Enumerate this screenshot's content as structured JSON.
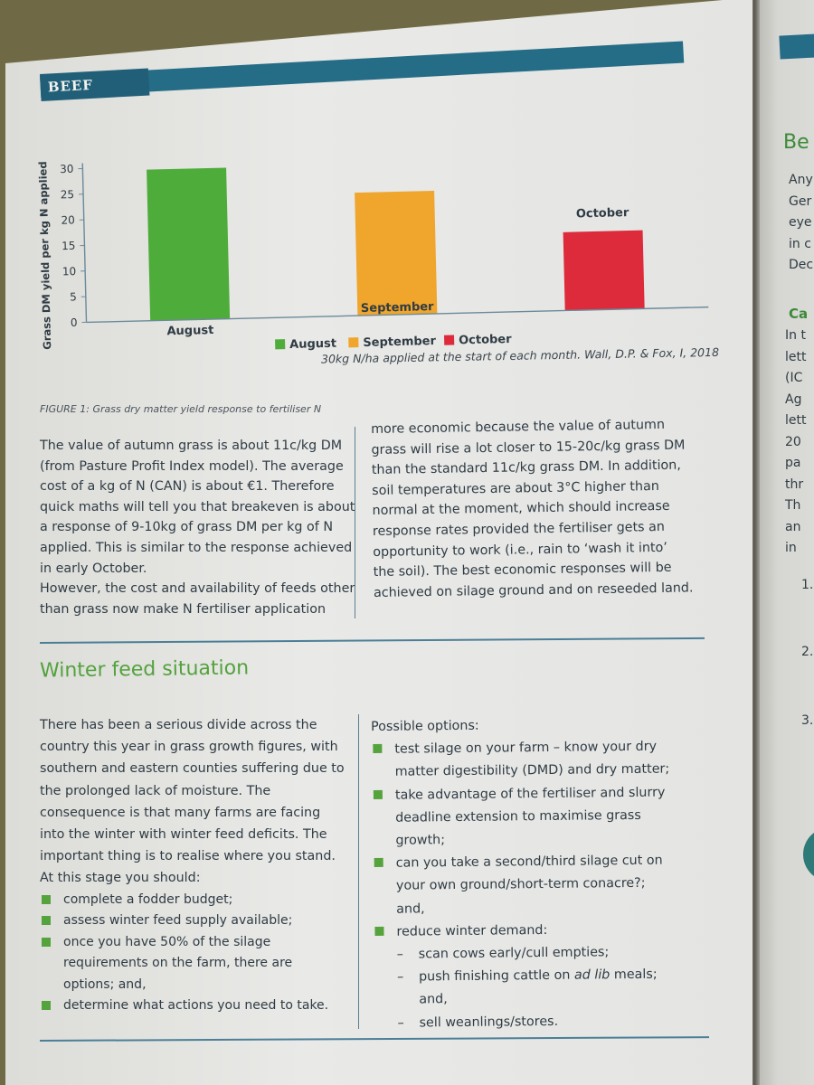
{
  "header": {
    "section_label": "BEEF"
  },
  "chart_data": {
    "type": "bar",
    "categories": [
      "August",
      "September",
      "October"
    ],
    "values": [
      29.5,
      24,
      15.3
    ],
    "colors": [
      "#4ead3a",
      "#f0a52c",
      "#dd2b3b"
    ],
    "ylabel": "Grass DM yield per kg N applied",
    "ylim": [
      0,
      30
    ],
    "yticks": [
      0,
      5,
      10,
      15,
      20,
      25,
      30
    ],
    "legend": {
      "position": "bottom-center",
      "entries": [
        {
          "name": "August",
          "color": "#4ead3a"
        },
        {
          "name": "September",
          "color": "#f0a52c"
        },
        {
          "name": "October",
          "color": "#dd2b3b"
        }
      ]
    },
    "grid": false,
    "source": "30kg N/ha applied at the start of each month. Wall, D.P. & Fox, I, 2018"
  },
  "figure_caption": {
    "label": "Figure 1:",
    "text": "Grass dry matter yield response to fertiliser N"
  },
  "intro": {
    "left_lines": [
      "The value of autumn grass is about 11c/kg DM",
      "(from Pasture Profit Index model). The average",
      "cost of a kg of N (CAN) is about €1. Therefore",
      "quick maths will tell you that breakeven is about",
      "a response of 9-10kg of grass DM per kg of N",
      "applied. This is similar to the response achieved",
      "in early October.",
      "However, the cost and availability of feeds other",
      "than grass now make N fertiliser application"
    ],
    "right_lines": [
      "more economic because the value of autumn",
      "grass will rise a lot closer to 15-20c/kg grass DM",
      "than the standard 11c/kg grass DM. In addition,",
      "soil temperatures are about 3°C higher than",
      "normal at the moment, which should increase",
      "response rates provided the fertiliser gets an",
      "opportunity to work (i.e., rain to ‘wash it into’",
      "the soil). The best economic responses will be",
      "achieved on silage ground and on reseeded land."
    ]
  },
  "winter": {
    "title": "Winter feed situation",
    "left_lines": [
      "There has been a serious divide across the",
      "country this year in grass growth figures, with",
      "southern and eastern counties suffering due to",
      "the prolonged lack of moisture. The",
      "consequence is that many farms are facing",
      "into the winter with winter feed deficits. The",
      "important thing is to realise where you stand.",
      "At this stage you should:"
    ],
    "left_bullets": [
      [
        "complete a fodder budget;"
      ],
      [
        "assess winter feed supply available;"
      ],
      [
        "once you have 50% of the silage",
        "requirements on the farm, there are",
        "options; and,"
      ],
      [
        "determine what actions you need to take."
      ]
    ],
    "options_heading": "Possible options:",
    "option_bullets": [
      [
        "test silage on your farm – know your dry",
        "matter digestibility (DMD) and dry matter;"
      ],
      [
        "take advantage of the fertiliser and slurry",
        "deadline extension to maximise grass",
        "growth;"
      ],
      [
        "can you take a second/third silage cut on",
        "your own ground/short-term conacre?;",
        "and,"
      ],
      [
        "reduce winter demand:"
      ]
    ],
    "dash_items": [
      {
        "pre": "scan cows early/cull empties;",
        "em": "",
        "post": ""
      },
      {
        "pre": "push finishing cattle on ",
        "em": "ad lib",
        "post": " meals;"
      },
      {
        "pre": "and,",
        "em": "",
        "post": ""
      },
      {
        "pre": "sell weanlings/stores.",
        "em": "",
        "post": ""
      }
    ],
    "dash_marks": [
      "–",
      "–",
      "",
      "–"
    ]
  },
  "right_page": {
    "title": "Be",
    "lines_top": [
      "Any",
      "Ger",
      "eye",
      "in c",
      "Dec"
    ],
    "subheading": "Ca",
    "lines_mid": [
      "In t",
      "lett",
      "(IC",
      "Ag",
      "lett",
      "20",
      "pa",
      "thr",
      "Th",
      "an",
      "in"
    ],
    "numbers": [
      "1.",
      "2.",
      "3."
    ]
  }
}
